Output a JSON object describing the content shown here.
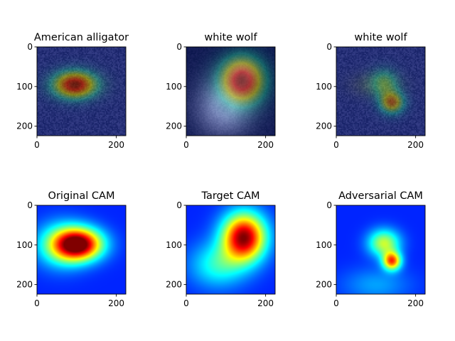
{
  "chart_data": [
    {
      "type": "heatmap",
      "kind": "image-overlay",
      "scene": "alligator",
      "title": "American alligator",
      "xlim": [
        0,
        224
      ],
      "ylim": [
        224,
        0
      ],
      "xticks": [
        0,
        200
      ],
      "yticks": [
        0,
        100,
        200
      ],
      "hotspots": [
        {
          "x": 95,
          "y": 95,
          "sx": 38,
          "sy": 24,
          "w": 1.0
        }
      ]
    },
    {
      "type": "heatmap",
      "kind": "image-overlay",
      "scene": "wolf",
      "title": "white wolf",
      "xlim": [
        0,
        224
      ],
      "ylim": [
        224,
        0
      ],
      "xticks": [
        0,
        200
      ],
      "yticks": [
        0,
        100,
        200
      ],
      "hotspots": [
        {
          "x": 140,
          "y": 85,
          "sx": 40,
          "sy": 42,
          "w": 1.0
        }
      ]
    },
    {
      "type": "heatmap",
      "kind": "image-overlay",
      "scene": "alligator",
      "title": "white wolf",
      "xlim": [
        0,
        224
      ],
      "ylim": [
        224,
        0
      ],
      "xticks": [
        0,
        200
      ],
      "yticks": [
        0,
        100,
        200
      ],
      "hotspots": [
        {
          "x": 140,
          "y": 140,
          "sx": 22,
          "sy": 20,
          "w": 0.7
        },
        {
          "x": 120,
          "y": 90,
          "sx": 25,
          "sy": 25,
          "w": 0.4
        }
      ]
    },
    {
      "type": "heatmap",
      "kind": "cam",
      "title": "Original CAM",
      "xlim": [
        0,
        224
      ],
      "ylim": [
        224,
        0
      ],
      "xticks": [
        0,
        200
      ],
      "yticks": [
        0,
        100,
        200
      ],
      "hotspots": [
        {
          "x": 105,
          "y": 98,
          "sx": 42,
          "sy": 28,
          "w": 1.0
        },
        {
          "x": 60,
          "y": 100,
          "sx": 45,
          "sy": 40,
          "w": 0.35
        }
      ]
    },
    {
      "type": "heatmap",
      "kind": "cam",
      "title": "Target CAM",
      "xlim": [
        0,
        224
      ],
      "ylim": [
        224,
        0
      ],
      "xticks": [
        0,
        200
      ],
      "yticks": [
        0,
        100,
        200
      ],
      "hotspots": [
        {
          "x": 145,
          "y": 80,
          "sx": 38,
          "sy": 42,
          "w": 1.0
        },
        {
          "x": 80,
          "y": 150,
          "sx": 50,
          "sy": 40,
          "w": 0.3
        }
      ]
    },
    {
      "type": "heatmap",
      "kind": "cam",
      "title": "Adversarial CAM",
      "xlim": [
        0,
        224
      ],
      "ylim": [
        224,
        0
      ],
      "xticks": [
        0,
        200
      ],
      "yticks": [
        0,
        100,
        200
      ],
      "hotspots": [
        {
          "x": 140,
          "y": 140,
          "sx": 16,
          "sy": 16,
          "w": 0.75
        },
        {
          "x": 120,
          "y": 95,
          "sx": 28,
          "sy": 24,
          "w": 0.5
        },
        {
          "x": 100,
          "y": 200,
          "sx": 60,
          "sy": 30,
          "w": 0.15
        }
      ]
    }
  ]
}
